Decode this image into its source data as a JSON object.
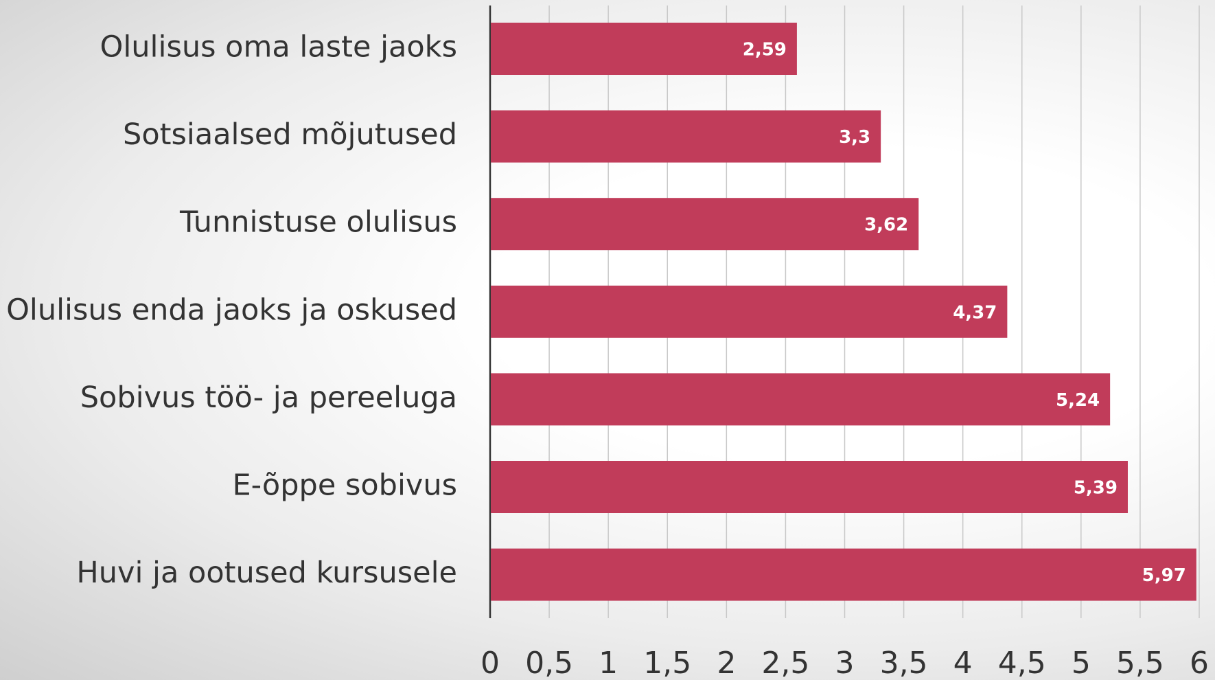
{
  "chart_data": {
    "type": "bar",
    "orientation": "horizontal",
    "categories": [
      "Olulisus oma laste jaoks",
      "Sotsiaalsed mõjutused",
      "Tunnistuse olulisus",
      "Olulisus enda jaoks ja oskused",
      "Sobivus töö- ja pereeluga",
      "E-õppe sobivus",
      "Huvi ja ootused kursusele"
    ],
    "values": [
      2.59,
      3.3,
      3.62,
      4.37,
      5.24,
      5.39,
      5.97
    ],
    "value_labels": [
      "2,59",
      "3,3",
      "3,62",
      "4,37",
      "5,24",
      "5,39",
      "5,97"
    ],
    "color": "#c13c5a",
    "xlim": [
      0,
      6
    ],
    "xticks": [
      0,
      {
        "value": 0.5,
        "label": "0,5"
      },
      1,
      {
        "value": 1.5,
        "label": "1,5"
      },
      2,
      {
        "value": 2.5,
        "label": "2,5"
      },
      3,
      {
        "value": 3.5,
        "label": "3,5"
      },
      4,
      {
        "value": 4.5,
        "label": "4,5"
      },
      5,
      {
        "value": 5.5,
        "label": "5,5"
      },
      6
    ],
    "grid": true
  }
}
